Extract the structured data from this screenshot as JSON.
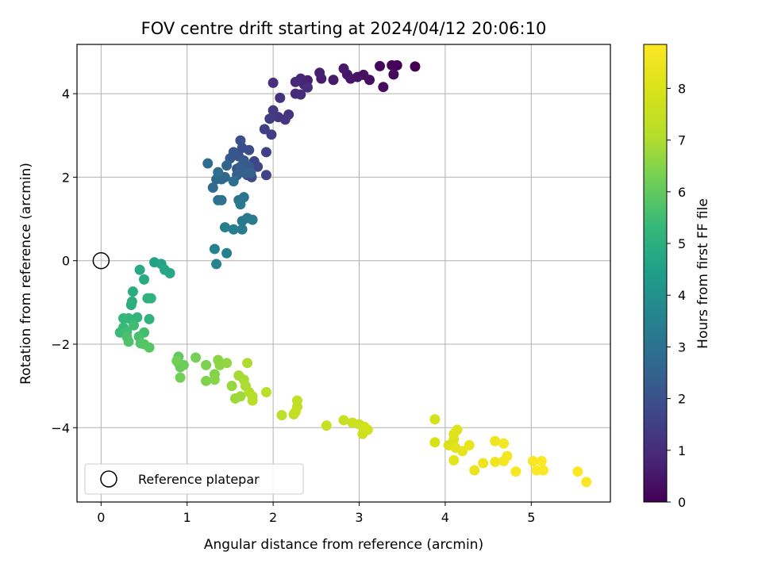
{
  "chart_data": {
    "type": "scatter",
    "title": "FOV centre drift starting at 2024/04/12 20:06:10",
    "xlabel": "Angular distance from reference (arcmin)",
    "ylabel": "Rotation from reference (arcmin)",
    "xlim": [
      -0.28,
      5.92
    ],
    "ylim": [
      -5.78,
      5.18
    ],
    "xticks": [
      0,
      1,
      2,
      3,
      4,
      5
    ],
    "yticks": [
      -4,
      -2,
      0,
      2,
      4
    ],
    "grid": true,
    "legend": {
      "placement": "lower-left",
      "entries": [
        "Reference platepar"
      ]
    },
    "reference_point": {
      "x": 0,
      "y": 0
    },
    "colorbar": {
      "label": "Hours from first FF file",
      "colormap": "viridis",
      "range": [
        0,
        8.85
      ],
      "ticks": [
        0,
        1,
        2,
        3,
        4,
        5,
        6,
        7,
        8
      ]
    },
    "points": [
      [
        3.65,
        4.65,
        0.0
      ],
      [
        3.44,
        4.68,
        0.05
      ],
      [
        3.38,
        4.68,
        0.1
      ],
      [
        3.24,
        4.66,
        0.15
      ],
      [
        3.4,
        4.46,
        0.2
      ],
      [
        3.28,
        4.16,
        0.25
      ],
      [
        3.12,
        4.33,
        0.3
      ],
      [
        3.05,
        4.45,
        0.35
      ],
      [
        2.98,
        4.4,
        0.4
      ],
      [
        2.9,
        4.36,
        0.45
      ],
      [
        2.86,
        4.46,
        0.5
      ],
      [
        2.82,
        4.6,
        0.55
      ],
      [
        2.7,
        4.33,
        0.6
      ],
      [
        2.56,
        4.36,
        0.65
      ],
      [
        2.54,
        4.5,
        0.7
      ],
      [
        2.4,
        4.32,
        0.75
      ],
      [
        2.36,
        4.22,
        0.8
      ],
      [
        2.32,
        4.36,
        0.85
      ],
      [
        2.26,
        4.28,
        0.9
      ],
      [
        2.26,
        4.0,
        0.95
      ],
      [
        2.32,
        3.98,
        1.0
      ],
      [
        2.4,
        4.15,
        1.05
      ],
      [
        2.0,
        4.26,
        1.1
      ],
      [
        2.08,
        3.9,
        1.15
      ],
      [
        2.18,
        3.5,
        1.2
      ],
      [
        2.14,
        3.38,
        1.25
      ],
      [
        2.06,
        3.44,
        1.3
      ],
      [
        2.0,
        3.6,
        1.35
      ],
      [
        1.96,
        3.4,
        1.4
      ],
      [
        1.98,
        3.02,
        1.45
      ],
      [
        1.9,
        3.15,
        1.5
      ],
      [
        1.92,
        2.6,
        1.55
      ],
      [
        1.92,
        2.05,
        1.6
      ],
      [
        1.78,
        2.38,
        1.65
      ],
      [
        1.82,
        2.25,
        1.7
      ],
      [
        1.75,
        2.0,
        1.75
      ],
      [
        1.7,
        2.05,
        1.8
      ],
      [
        1.72,
        2.65,
        1.85
      ],
      [
        1.64,
        2.7,
        1.9
      ],
      [
        1.62,
        2.88,
        1.95
      ],
      [
        1.58,
        2.2,
        2.0
      ],
      [
        1.6,
        2.5,
        2.05
      ],
      [
        1.54,
        2.6,
        2.1
      ],
      [
        1.5,
        2.45,
        2.15
      ],
      [
        1.66,
        2.4,
        2.2
      ],
      [
        1.72,
        2.25,
        2.25
      ],
      [
        1.66,
        2.35,
        2.3
      ],
      [
        1.62,
        2.25,
        2.35
      ],
      [
        1.68,
        2.1,
        2.4
      ],
      [
        1.74,
        2.1,
        2.45
      ],
      [
        1.58,
        2.05,
        2.5
      ],
      [
        1.46,
        2.28,
        2.55
      ],
      [
        1.44,
        2.0,
        2.6
      ],
      [
        1.4,
        1.95,
        2.65
      ],
      [
        1.34,
        1.95,
        2.7
      ],
      [
        1.3,
        1.75,
        2.75
      ],
      [
        1.24,
        2.33,
        2.8
      ],
      [
        1.54,
        1.9,
        2.85
      ],
      [
        1.36,
        2.12,
        2.9
      ],
      [
        1.36,
        1.45,
        2.95
      ],
      [
        1.4,
        1.45,
        3.0
      ],
      [
        1.6,
        1.45,
        3.05
      ],
      [
        1.66,
        1.52,
        3.1
      ],
      [
        1.62,
        1.35,
        3.15
      ],
      [
        1.64,
        0.95,
        3.2
      ],
      [
        1.7,
        1.02,
        3.25
      ],
      [
        1.76,
        0.98,
        3.3
      ],
      [
        1.64,
        0.75,
        3.35
      ],
      [
        1.54,
        0.75,
        3.4
      ],
      [
        1.44,
        0.8,
        3.45
      ],
      [
        1.46,
        0.18,
        3.5
      ],
      [
        1.32,
        0.28,
        3.55
      ],
      [
        1.34,
        -0.08,
        3.6
      ],
      [
        0.62,
        -0.04,
        4.6
      ],
      [
        0.7,
        -0.08,
        4.65
      ],
      [
        0.74,
        -0.22,
        4.7
      ],
      [
        0.8,
        -0.3,
        4.75
      ],
      [
        0.45,
        -0.22,
        4.8
      ],
      [
        0.5,
        -0.45,
        4.85
      ],
      [
        0.37,
        -0.74,
        4.9
      ],
      [
        0.36,
        -0.98,
        4.95
      ],
      [
        0.35,
        -1.06,
        5.0
      ],
      [
        0.54,
        -0.9,
        5.05
      ],
      [
        0.58,
        -0.9,
        5.1
      ],
      [
        0.56,
        -1.4,
        5.15
      ],
      [
        0.42,
        -1.36,
        5.2
      ],
      [
        0.32,
        -1.38,
        5.25
      ],
      [
        0.26,
        -1.38,
        5.3
      ],
      [
        0.26,
        -1.6,
        5.35
      ],
      [
        0.22,
        -1.72,
        5.4
      ],
      [
        0.3,
        -1.7,
        5.45
      ],
      [
        0.38,
        -1.55,
        5.5
      ],
      [
        0.5,
        -1.72,
        5.55
      ],
      [
        0.44,
        -1.82,
        5.6
      ],
      [
        0.3,
        -1.82,
        5.65
      ],
      [
        0.32,
        -1.94,
        5.7
      ],
      [
        0.46,
        -1.98,
        5.75
      ],
      [
        0.5,
        -2.0,
        5.8
      ],
      [
        0.56,
        -2.08,
        5.85
      ],
      [
        0.9,
        -2.3,
        6.0
      ],
      [
        0.9,
        -2.45,
        6.05
      ],
      [
        0.92,
        -2.55,
        6.1
      ],
      [
        0.96,
        -2.5,
        6.15
      ],
      [
        0.88,
        -2.4,
        6.2
      ],
      [
        0.92,
        -2.8,
        6.25
      ],
      [
        1.1,
        -2.32,
        6.3
      ],
      [
        1.22,
        -2.5,
        6.35
      ],
      [
        1.22,
        -2.88,
        6.4
      ],
      [
        1.32,
        -2.72,
        6.45
      ],
      [
        1.32,
        -2.85,
        6.5
      ],
      [
        1.36,
        -2.38,
        6.55
      ],
      [
        1.38,
        -2.5,
        6.6
      ],
      [
        1.46,
        -2.45,
        6.65
      ],
      [
        1.52,
        -3.0,
        6.7
      ],
      [
        1.56,
        -3.3,
        6.75
      ],
      [
        1.62,
        -3.25,
        6.8
      ],
      [
        1.6,
        -2.75,
        6.85
      ],
      [
        1.66,
        -2.85,
        6.9
      ],
      [
        1.68,
        -3.0,
        6.95
      ],
      [
        1.7,
        -2.45,
        7.0
      ],
      [
        1.72,
        -3.15,
        7.05
      ],
      [
        1.76,
        -3.25,
        7.1
      ],
      [
        1.76,
        -3.35,
        7.15
      ],
      [
        1.92,
        -3.15,
        7.2
      ],
      [
        2.1,
        -3.7,
        7.25
      ],
      [
        2.24,
        -3.68,
        7.3
      ],
      [
        2.28,
        -3.35,
        7.35
      ],
      [
        2.28,
        -3.5,
        7.4
      ],
      [
        2.26,
        -3.62,
        7.45
      ],
      [
        2.62,
        -3.95,
        7.5
      ],
      [
        2.82,
        -3.82,
        7.55
      ],
      [
        2.92,
        -3.88,
        7.6
      ],
      [
        3.0,
        -3.92,
        7.65
      ],
      [
        3.04,
        -4.15,
        7.7
      ],
      [
        3.06,
        -3.98,
        7.75
      ],
      [
        3.1,
        -4.05,
        7.8
      ],
      [
        3.88,
        -3.8,
        7.9
      ],
      [
        3.88,
        -4.35,
        7.95
      ],
      [
        4.04,
        -4.42,
        8.0
      ],
      [
        4.1,
        -4.28,
        8.05
      ],
      [
        4.1,
        -4.15,
        8.1
      ],
      [
        4.14,
        -4.05,
        8.15
      ],
      [
        4.12,
        -4.48,
        8.2
      ],
      [
        4.1,
        -4.78,
        8.25
      ],
      [
        4.2,
        -4.56,
        8.3
      ],
      [
        4.28,
        -4.42,
        8.35
      ],
      [
        4.34,
        -5.02,
        8.4
      ],
      [
        4.44,
        -4.85,
        8.45
      ],
      [
        4.58,
        -4.32,
        8.5
      ],
      [
        4.58,
        -4.82,
        8.55
      ],
      [
        4.68,
        -4.38,
        8.6
      ],
      [
        4.68,
        -4.8,
        8.65
      ],
      [
        4.72,
        -4.68,
        8.65
      ],
      [
        4.82,
        -5.05,
        8.7
      ],
      [
        5.02,
        -4.8,
        8.75
      ],
      [
        5.06,
        -5.02,
        8.8
      ],
      [
        5.12,
        -4.8,
        8.8
      ],
      [
        5.14,
        -5.02,
        8.82
      ],
      [
        5.54,
        -5.05,
        8.84
      ],
      [
        5.64,
        -5.3,
        8.85
      ]
    ]
  }
}
